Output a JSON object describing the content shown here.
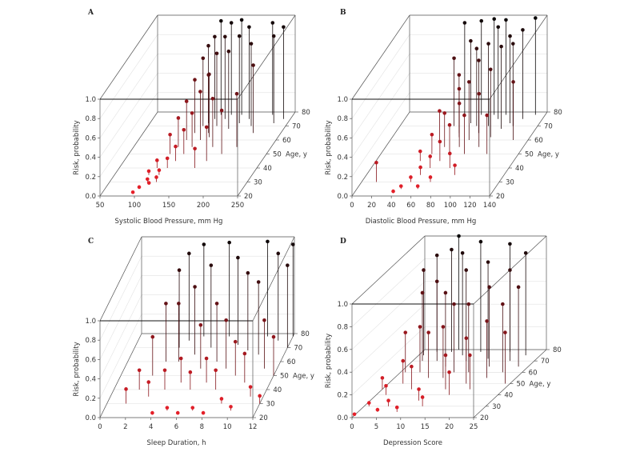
{
  "chart_data": [
    {
      "type": "scatter",
      "panel": "A",
      "xlabel": "Systolic Blood Pressure, mm Hg",
      "ylabel": "Age, y",
      "zlabel": "Risk, probability",
      "xlim": [
        50,
        250
      ],
      "xticks": [
        "50",
        "100",
        "150",
        "200",
        "250"
      ],
      "ylim": [
        20,
        80
      ],
      "yticks": [
        "20",
        "30",
        "40",
        "50",
        "60",
        "70",
        "80"
      ],
      "zlim": [
        0,
        1
      ],
      "zticks": [
        "0.0",
        "0.2",
        "0.4",
        "0.6",
        "0.8",
        "1.0"
      ],
      "points": [
        [
          95,
          22,
          0.01
        ],
        [
          100,
          25,
          0.02
        ],
        [
          105,
          30,
          0.03
        ],
        [
          110,
          28,
          0.02
        ],
        [
          115,
          35,
          0.05
        ],
        [
          120,
          40,
          0.1
        ],
        [
          125,
          45,
          0.15
        ],
        [
          130,
          50,
          0.25
        ],
        [
          135,
          55,
          0.35
        ],
        [
          140,
          60,
          0.5
        ],
        [
          145,
          65,
          0.6
        ],
        [
          150,
          70,
          0.75
        ],
        [
          155,
          75,
          0.85
        ],
        [
          160,
          78,
          0.95
        ],
        [
          110,
          50,
          0.2
        ],
        [
          120,
          60,
          0.4
        ],
        [
          130,
          70,
          0.7
        ],
        [
          140,
          75,
          0.85
        ],
        [
          150,
          62,
          0.65
        ],
        [
          165,
          55,
          0.5
        ],
        [
          170,
          68,
          0.8
        ],
        [
          180,
          72,
          0.9
        ],
        [
          190,
          75,
          0.95
        ],
        [
          200,
          70,
          0.85
        ],
        [
          210,
          65,
          0.7
        ],
        [
          220,
          78,
          0.95
        ],
        [
          230,
          72,
          0.9
        ],
        [
          240,
          75,
          0.95
        ],
        [
          105,
          40,
          0.08
        ],
        [
          115,
          55,
          0.3
        ],
        [
          125,
          65,
          0.55
        ],
        [
          135,
          72,
          0.8
        ],
        [
          145,
          78,
          0.97
        ],
        [
          170,
          45,
          0.35
        ],
        [
          185,
          50,
          0.45
        ],
        [
          100,
          35,
          0.04
        ],
        [
          118,
          30,
          0.05
        ],
        [
          160,
          40,
          0.2
        ],
        [
          200,
          55,
          0.55
        ],
        [
          175,
          78,
          0.98
        ]
      ]
    },
    {
      "type": "scatter",
      "panel": "B",
      "xlabel": "Diastolic Blood Pressure, mm Hg",
      "ylabel": "Age, y",
      "zlabel": "Risk, probability",
      "xlim": [
        0,
        140
      ],
      "xticks": [
        "0",
        "20",
        "40",
        "60",
        "80",
        "100",
        "120",
        "140"
      ],
      "ylim": [
        20,
        80
      ],
      "yticks": [
        "20",
        "30",
        "40",
        "50",
        "60",
        "70",
        "80"
      ],
      "zlim": [
        0,
        1
      ],
      "zticks": [
        "0.0",
        "0.2",
        "0.4",
        "0.6",
        "0.8",
        "1.0"
      ],
      "points": [
        [
          15,
          30,
          0.2
        ],
        [
          40,
          22,
          0.02
        ],
        [
          45,
          25,
          0.03
        ],
        [
          50,
          30,
          0.05
        ],
        [
          55,
          35,
          0.08
        ],
        [
          60,
          40,
          0.12
        ],
        [
          65,
          45,
          0.2
        ],
        [
          70,
          50,
          0.3
        ],
        [
          75,
          55,
          0.45
        ],
        [
          80,
          60,
          0.6
        ],
        [
          85,
          65,
          0.75
        ],
        [
          90,
          70,
          0.85
        ],
        [
          95,
          75,
          0.95
        ],
        [
          100,
          78,
          0.98
        ],
        [
          60,
          55,
          0.35
        ],
        [
          65,
          65,
          0.6
        ],
        [
          70,
          72,
          0.85
        ],
        [
          75,
          78,
          0.97
        ],
        [
          85,
          50,
          0.4
        ],
        [
          95,
          55,
          0.55
        ],
        [
          100,
          62,
          0.7
        ],
        [
          105,
          68,
          0.85
        ],
        [
          110,
          72,
          0.9
        ],
        [
          115,
          70,
          0.85
        ],
        [
          120,
          75,
          0.92
        ],
        [
          125,
          60,
          0.6
        ],
        [
          130,
          78,
          1.0
        ],
        [
          50,
          60,
          0.3
        ],
        [
          55,
          70,
          0.7
        ],
        [
          58,
          78,
          0.95
        ],
        [
          80,
          40,
          0.15
        ],
        [
          90,
          35,
          0.1
        ],
        [
          70,
          30,
          0.05
        ],
        [
          62,
          25,
          0.03
        ],
        [
          88,
          78,
          0.99
        ],
        [
          78,
          70,
          0.8
        ],
        [
          108,
          50,
          0.4
        ],
        [
          45,
          45,
          0.1
        ],
        [
          52,
          50,
          0.2
        ],
        [
          68,
          62,
          0.5
        ]
      ]
    },
    {
      "type": "scatter",
      "panel": "C",
      "xlabel": "Sleep Duration, h",
      "ylabel": "Age, y",
      "zlabel": "Risk, probability",
      "xlim": [
        0,
        12
      ],
      "xticks": [
        "0",
        "2",
        "4",
        "6",
        "8",
        "10",
        "12"
      ],
      "ylim": [
        20,
        80
      ],
      "yticks": [
        "20",
        "30",
        "40",
        "50",
        "60",
        "70",
        "80"
      ],
      "zlim": [
        0,
        1
      ],
      "zticks": [
        "0.0",
        "0.2",
        "0.4",
        "0.6",
        "0.8",
        "1.0"
      ],
      "points": [
        [
          1.5,
          30,
          0.15
        ],
        [
          2,
          40,
          0.2
        ],
        [
          2.5,
          50,
          0.4
        ],
        [
          3,
          60,
          0.6
        ],
        [
          3,
          35,
          0.15
        ],
        [
          4,
          22,
          0.02
        ],
        [
          4,
          40,
          0.2
        ],
        [
          4,
          60,
          0.6
        ],
        [
          4,
          75,
          0.9
        ],
        [
          5,
          25,
          0.03
        ],
        [
          5,
          45,
          0.25
        ],
        [
          5,
          65,
          0.7
        ],
        [
          5,
          78,
          0.95
        ],
        [
          6,
          22,
          0.02
        ],
        [
          6,
          40,
          0.18
        ],
        [
          6,
          55,
          0.45
        ],
        [
          6,
          70,
          0.85
        ],
        [
          7,
          25,
          0.03
        ],
        [
          7,
          45,
          0.25
        ],
        [
          7,
          60,
          0.6
        ],
        [
          7,
          78,
          0.97
        ],
        [
          8,
          22,
          0.02
        ],
        [
          8,
          40,
          0.2
        ],
        [
          8,
          55,
          0.5
        ],
        [
          8,
          72,
          0.9
        ],
        [
          9,
          30,
          0.05
        ],
        [
          9,
          50,
          0.35
        ],
        [
          9,
          68,
          0.8
        ],
        [
          10,
          25,
          0.04
        ],
        [
          10,
          45,
          0.3
        ],
        [
          10,
          65,
          0.75
        ],
        [
          10,
          78,
          0.98
        ],
        [
          11,
          35,
          0.1
        ],
        [
          11,
          55,
          0.5
        ],
        [
          11,
          75,
          0.9
        ],
        [
          12,
          30,
          0.08
        ],
        [
          12,
          50,
          0.4
        ],
        [
          12,
          70,
          0.85
        ],
        [
          12,
          78,
          0.95
        ],
        [
          3.5,
          70,
          0.8
        ]
      ]
    },
    {
      "type": "scatter",
      "panel": "D",
      "xlabel": "Depression Score",
      "ylabel": "Age, y",
      "zlabel": "Risk, probability",
      "xlim": [
        0,
        25
      ],
      "xticks": [
        "0",
        "5",
        "10",
        "15",
        "20",
        "25"
      ],
      "ylim": [
        20,
        80
      ],
      "yticks": [
        "20",
        "30",
        "40",
        "50",
        "60",
        "70",
        "80"
      ],
      "zlim": [
        0,
        1
      ],
      "zticks": [
        "0.0",
        "0.2",
        "0.4",
        "0.6",
        "0.8",
        "1.0"
      ],
      "points": [
        [
          0,
          22,
          0.01
        ],
        [
          1,
          30,
          0.03
        ],
        [
          2,
          40,
          0.08
        ],
        [
          3,
          50,
          0.2
        ],
        [
          4,
          60,
          0.4
        ],
        [
          5,
          70,
          0.7
        ],
        [
          6,
          78,
          0.9
        ],
        [
          1,
          60,
          0.35
        ],
        [
          2,
          70,
          0.6
        ],
        [
          3,
          78,
          0.85
        ],
        [
          5,
          30,
          0.05
        ],
        [
          6,
          45,
          0.2
        ],
        [
          7,
          55,
          0.4
        ],
        [
          8,
          65,
          0.65
        ],
        [
          9,
          75,
          0.9
        ],
        [
          10,
          35,
          0.1
        ],
        [
          10,
          55,
          0.45
        ],
        [
          11,
          70,
          0.8
        ],
        [
          12,
          78,
          0.97
        ],
        [
          13,
          45,
          0.3
        ],
        [
          14,
          60,
          0.6
        ],
        [
          15,
          72,
          0.85
        ],
        [
          16,
          50,
          0.4
        ],
        [
          17,
          65,
          0.7
        ],
        [
          18,
          78,
          0.95
        ],
        [
          19,
          55,
          0.5
        ],
        [
          20,
          70,
          0.8
        ],
        [
          21,
          60,
          0.6
        ],
        [
          22,
          75,
          0.9
        ],
        [
          23,
          65,
          0.7
        ],
        [
          24,
          50,
          0.45
        ],
        [
          0,
          45,
          0.1
        ],
        [
          1,
          75,
          0.75
        ],
        [
          4,
          25,
          0.02
        ],
        [
          8,
          25,
          0.04
        ],
        [
          12,
          30,
          0.08
        ],
        [
          15,
          40,
          0.2
        ],
        [
          7,
          80,
          1.0
        ],
        [
          11,
          60,
          0.6
        ],
        [
          18,
          45,
          0.3
        ]
      ]
    }
  ]
}
